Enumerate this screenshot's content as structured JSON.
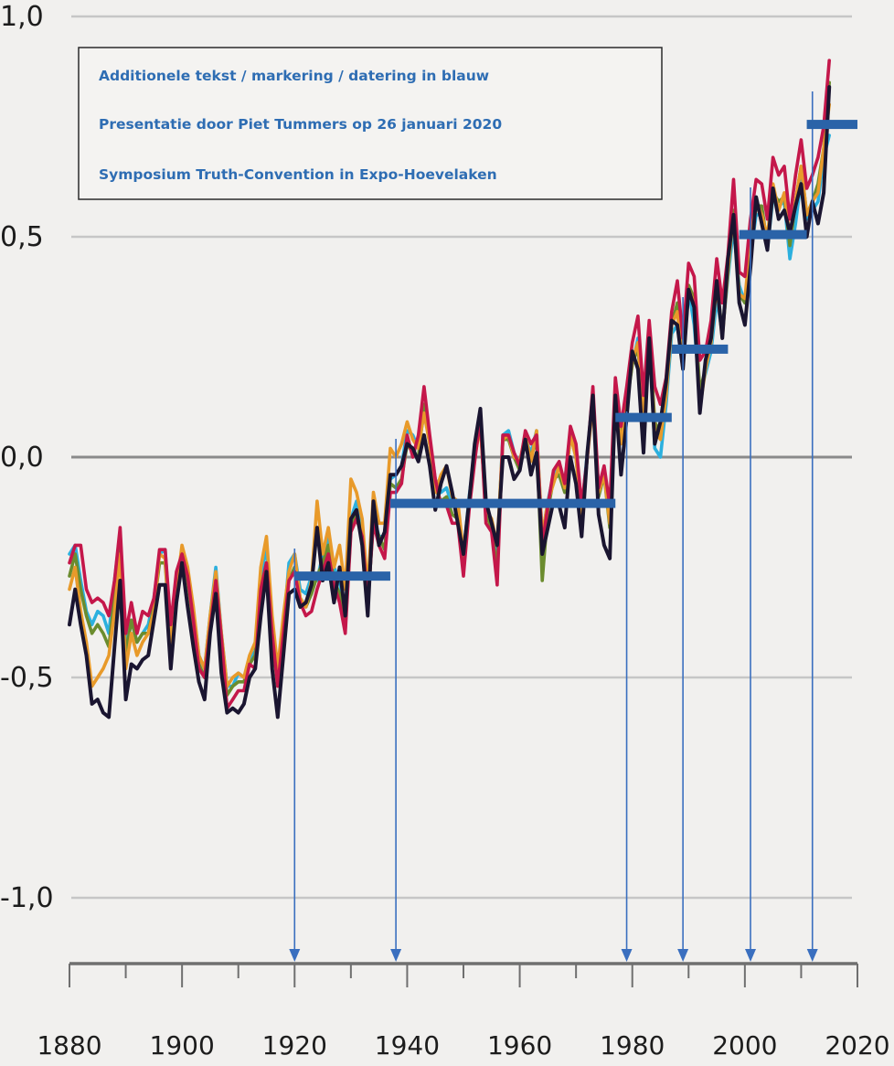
{
  "annotation_box": {
    "lines": [
      "Additionele tekst / markering / datering in blauw",
      "Presentatie door Piet Tummers op 26 januari 2020",
      "Symposium Truth-Convention in Expo-Hoevelaken"
    ]
  },
  "colors": {
    "background": "#f1f0ee",
    "gridline": "#c6c6c6",
    "zero_line": "#8a8a8a",
    "axis": "#6f6f6f",
    "annotation": "#2e6db3",
    "step_bar": "#2a63a8",
    "arrow": "#3a6fbf"
  },
  "chart_data": {
    "type": "line",
    "title": "",
    "xlabel": "",
    "ylabel": "",
    "xlim": [
      1880,
      2020
    ],
    "ylim": [
      -1.15,
      1.0
    ],
    "xticks": [
      1880,
      1900,
      1920,
      1940,
      1960,
      1980,
      2000,
      2020
    ],
    "xtick_labels": [
      "1880",
      "1900",
      "1920",
      "1940",
      "1960",
      "1980",
      "2000",
      "2020"
    ],
    "yticks": [
      1.0,
      0.5,
      0.0,
      -0.5,
      -1.0
    ],
    "ytick_labels": [
      "1,0",
      "0,5",
      "0,0",
      "-0,5",
      "-1,0"
    ],
    "grid": true,
    "legend": "none",
    "years": [
      1880,
      1881,
      1882,
      1883,
      1884,
      1885,
      1886,
      1887,
      1888,
      1889,
      1890,
      1891,
      1892,
      1893,
      1894,
      1895,
      1896,
      1897,
      1898,
      1899,
      1900,
      1901,
      1902,
      1903,
      1904,
      1905,
      1906,
      1907,
      1908,
      1909,
      1910,
      1911,
      1912,
      1913,
      1914,
      1915,
      1916,
      1917,
      1918,
      1919,
      1920,
      1921,
      1922,
      1923,
      1924,
      1925,
      1926,
      1927,
      1928,
      1929,
      1930,
      1931,
      1932,
      1933,
      1934,
      1935,
      1936,
      1937,
      1938,
      1939,
      1940,
      1941,
      1942,
      1943,
      1944,
      1945,
      1946,
      1947,
      1948,
      1949,
      1950,
      1951,
      1952,
      1953,
      1954,
      1955,
      1956,
      1957,
      1958,
      1959,
      1960,
      1961,
      1962,
      1963,
      1964,
      1965,
      1966,
      1967,
      1968,
      1969,
      1970,
      1971,
      1972,
      1973,
      1974,
      1975,
      1976,
      1977,
      1978,
      1979,
      1980,
      1981,
      1982,
      1983,
      1984,
      1985,
      1986,
      1987,
      1988,
      1989,
      1990,
      1991,
      1992,
      1993,
      1994,
      1995,
      1996,
      1997,
      1998,
      1999,
      2000,
      2001,
      2002,
      2003,
      2004,
      2005,
      2006,
      2007,
      2008,
      2009,
      2010,
      2011,
      2012,
      2013,
      2014,
      2015
    ],
    "series": [
      {
        "color": "#1a1530",
        "values": [
          -0.38,
          -0.3,
          -0.38,
          -0.45,
          -0.56,
          -0.55,
          -0.58,
          -0.59,
          -0.43,
          -0.28,
          -0.55,
          -0.47,
          -0.48,
          -0.46,
          -0.45,
          -0.37,
          -0.29,
          -0.29,
          -0.48,
          -0.33,
          -0.24,
          -0.34,
          -0.43,
          -0.51,
          -0.55,
          -0.4,
          -0.31,
          -0.49,
          -0.58,
          -0.57,
          -0.58,
          -0.56,
          -0.5,
          -0.48,
          -0.36,
          -0.26,
          -0.48,
          -0.59,
          -0.45,
          -0.31,
          -0.3,
          -0.34,
          -0.33,
          -0.29,
          -0.16,
          -0.28,
          -0.24,
          -0.33,
          -0.25,
          -0.36,
          -0.14,
          -0.12,
          -0.2,
          -0.36,
          -0.1,
          -0.2,
          -0.17,
          -0.04,
          -0.04,
          -0.02,
          0.03,
          0.02,
          -0.01,
          0.05,
          -0.02,
          -0.12,
          -0.06,
          -0.02,
          -0.08,
          -0.15,
          -0.22,
          -0.1,
          0.03,
          0.11,
          -0.1,
          -0.15,
          -0.2,
          0.0,
          0.0,
          -0.05,
          -0.03,
          0.04,
          -0.04,
          0.01,
          -0.22,
          -0.16,
          -0.1,
          -0.11,
          -0.16,
          0.0,
          -0.06,
          -0.18,
          0.01,
          0.14,
          -0.13,
          -0.2,
          -0.23,
          0.14,
          -0.04,
          0.09,
          0.24,
          0.2,
          0.01,
          0.27,
          0.03,
          0.08,
          0.17,
          0.31,
          0.3,
          0.2,
          0.38,
          0.34,
          0.1,
          0.22,
          0.27,
          0.4,
          0.27,
          0.45,
          0.55,
          0.35,
          0.3,
          0.43,
          0.59,
          0.53,
          0.47,
          0.61,
          0.54,
          0.56,
          0.51,
          0.57,
          0.62,
          0.5,
          0.58,
          0.53,
          0.6,
          0.84
        ]
      },
      {
        "color": "#c4174a",
        "values": [
          -0.24,
          -0.2,
          -0.2,
          -0.3,
          -0.33,
          -0.32,
          -0.33,
          -0.36,
          -0.28,
          -0.16,
          -0.4,
          -0.33,
          -0.4,
          -0.35,
          -0.36,
          -0.32,
          -0.21,
          -0.21,
          -0.38,
          -0.26,
          -0.22,
          -0.27,
          -0.37,
          -0.48,
          -0.5,
          -0.39,
          -0.28,
          -0.41,
          -0.57,
          -0.55,
          -0.53,
          -0.53,
          -0.47,
          -0.48,
          -0.3,
          -0.24,
          -0.4,
          -0.52,
          -0.4,
          -0.28,
          -0.26,
          -0.33,
          -0.36,
          -0.35,
          -0.3,
          -0.26,
          -0.22,
          -0.29,
          -0.33,
          -0.4,
          -0.17,
          -0.14,
          -0.18,
          -0.33,
          -0.15,
          -0.2,
          -0.23,
          -0.08,
          -0.08,
          -0.06,
          0.05,
          0.0,
          0.05,
          0.16,
          0.05,
          -0.05,
          -0.11,
          -0.11,
          -0.15,
          -0.15,
          -0.27,
          -0.12,
          -0.01,
          0.09,
          -0.15,
          -0.17,
          -0.29,
          0.05,
          0.05,
          0.01,
          -0.02,
          0.06,
          0.03,
          0.05,
          -0.2,
          -0.11,
          -0.03,
          -0.01,
          -0.06,
          0.07,
          0.03,
          -0.11,
          0.0,
          0.16,
          -0.07,
          -0.02,
          -0.11,
          0.18,
          0.07,
          0.16,
          0.26,
          0.32,
          0.14,
          0.31,
          0.16,
          0.12,
          0.18,
          0.33,
          0.4,
          0.27,
          0.44,
          0.41,
          0.22,
          0.24,
          0.31,
          0.45,
          0.35,
          0.46,
          0.63,
          0.42,
          0.41,
          0.54,
          0.63,
          0.62,
          0.54,
          0.68,
          0.64,
          0.66,
          0.54,
          0.64,
          0.72,
          0.61,
          0.64,
          0.68,
          0.75,
          0.9
        ]
      },
      {
        "color": "#2cb0de",
        "values": [
          -0.22,
          -0.2,
          -0.28,
          -0.35,
          -0.38,
          -0.35,
          -0.36,
          -0.4,
          -0.28,
          -0.17,
          -0.42,
          -0.37,
          -0.42,
          -0.4,
          -0.38,
          -0.32,
          -0.22,
          -0.21,
          -0.4,
          -0.27,
          -0.22,
          -0.26,
          -0.35,
          -0.45,
          -0.48,
          -0.36,
          -0.25,
          -0.4,
          -0.52,
          -0.52,
          -0.49,
          -0.5,
          -0.46,
          -0.44,
          -0.28,
          -0.2,
          -0.38,
          -0.5,
          -0.39,
          -0.24,
          -0.22,
          -0.3,
          -0.31,
          -0.27,
          -0.28,
          -0.22,
          -0.18,
          -0.25,
          -0.28,
          -0.36,
          -0.14,
          -0.1,
          -0.16,
          -0.3,
          -0.13,
          -0.18,
          -0.18,
          -0.05,
          -0.04,
          -0.02,
          0.06,
          0.05,
          0.02,
          0.1,
          0.04,
          -0.05,
          -0.08,
          -0.07,
          -0.11,
          -0.11,
          -0.22,
          -0.09,
          0.01,
          0.08,
          -0.12,
          -0.15,
          -0.22,
          0.05,
          0.06,
          0.01,
          -0.02,
          0.04,
          0.01,
          0.06,
          -0.18,
          -0.1,
          -0.04,
          -0.02,
          -0.06,
          0.06,
          0.01,
          -0.12,
          0.01,
          0.13,
          -0.07,
          -0.03,
          -0.15,
          0.13,
          0.03,
          0.13,
          0.21,
          0.27,
          0.04,
          0.28,
          0.02,
          0.0,
          0.12,
          0.28,
          0.3,
          0.2,
          0.38,
          0.3,
          0.14,
          0.19,
          0.24,
          0.36,
          0.28,
          0.41,
          0.52,
          0.39,
          0.35,
          0.46,
          0.55,
          0.55,
          0.47,
          0.59,
          0.57,
          0.58,
          0.45,
          0.53,
          0.63,
          0.54,
          0.56,
          0.58,
          0.68,
          0.73
        ]
      },
      {
        "color": "#6b8c2e",
        "values": [
          -0.27,
          -0.22,
          -0.3,
          -0.36,
          -0.4,
          -0.38,
          -0.4,
          -0.43,
          -0.32,
          -0.2,
          -0.45,
          -0.37,
          -0.42,
          -0.4,
          -0.4,
          -0.34,
          -0.24,
          -0.24,
          -0.42,
          -0.28,
          -0.24,
          -0.28,
          -0.38,
          -0.47,
          -0.5,
          -0.38,
          -0.28,
          -0.42,
          -0.54,
          -0.52,
          -0.51,
          -0.51,
          -0.47,
          -0.45,
          -0.3,
          -0.24,
          -0.41,
          -0.52,
          -0.4,
          -0.28,
          -0.25,
          -0.32,
          -0.34,
          -0.31,
          -0.27,
          -0.24,
          -0.2,
          -0.28,
          -0.31,
          -0.39,
          -0.16,
          -0.12,
          -0.19,
          -0.34,
          -0.14,
          -0.18,
          -0.21,
          -0.06,
          -0.07,
          -0.05,
          0.03,
          0.01,
          0.0,
          0.12,
          0.03,
          -0.07,
          -0.1,
          -0.09,
          -0.13,
          -0.14,
          -0.25,
          -0.1,
          0.0,
          0.08,
          -0.13,
          -0.16,
          -0.26,
          0.04,
          0.04,
          0.0,
          -0.03,
          0.04,
          0.0,
          0.04,
          -0.28,
          -0.12,
          -0.05,
          -0.04,
          -0.08,
          0.05,
          0.0,
          -0.14,
          0.0,
          0.14,
          -0.09,
          -0.04,
          -0.16,
          0.15,
          0.04,
          0.12,
          0.21,
          0.25,
          0.1,
          0.28,
          0.08,
          0.05,
          0.16,
          0.3,
          0.35,
          0.22,
          0.39,
          0.36,
          0.15,
          0.2,
          0.27,
          0.4,
          0.28,
          0.42,
          0.56,
          0.37,
          0.35,
          0.48,
          0.57,
          0.57,
          0.48,
          0.6,
          0.58,
          0.59,
          0.48,
          0.58,
          0.66,
          0.55,
          0.58,
          0.62,
          0.7,
          0.85
        ]
      },
      {
        "color": "#e89a2a",
        "values": [
          -0.3,
          -0.25,
          -0.35,
          -0.42,
          -0.52,
          -0.5,
          -0.48,
          -0.45,
          -0.35,
          -0.22,
          -0.48,
          -0.4,
          -0.45,
          -0.42,
          -0.4,
          -0.35,
          -0.22,
          -0.23,
          -0.42,
          -0.3,
          -0.2,
          -0.25,
          -0.34,
          -0.45,
          -0.48,
          -0.36,
          -0.26,
          -0.4,
          -0.52,
          -0.5,
          -0.49,
          -0.5,
          -0.45,
          -0.42,
          -0.25,
          -0.18,
          -0.36,
          -0.48,
          -0.36,
          -0.26,
          -0.22,
          -0.32,
          -0.34,
          -0.28,
          -0.1,
          -0.22,
          -0.16,
          -0.25,
          -0.2,
          -0.3,
          -0.05,
          -0.08,
          -0.14,
          -0.3,
          -0.08,
          -0.15,
          -0.15,
          0.02,
          0.0,
          0.03,
          0.08,
          0.04,
          0.02,
          0.1,
          0.03,
          -0.08,
          -0.04,
          -0.02,
          -0.09,
          -0.1,
          -0.22,
          -0.1,
          0.0,
          0.07,
          -0.12,
          -0.14,
          -0.2,
          0.04,
          0.05,
          0.0,
          -0.01,
          0.05,
          -0.01,
          0.06,
          -0.18,
          -0.1,
          -0.06,
          -0.02,
          -0.07,
          0.05,
          0.0,
          -0.13,
          0.0,
          0.12,
          -0.08,
          -0.04,
          -0.15,
          0.14,
          0.03,
          0.12,
          0.22,
          0.26,
          0.09,
          0.27,
          0.06,
          0.04,
          0.14,
          0.3,
          0.33,
          0.21,
          0.38,
          0.35,
          0.11,
          0.2,
          0.26,
          0.39,
          0.27,
          0.43,
          0.55,
          0.37,
          0.36,
          0.49,
          0.58,
          0.55,
          0.5,
          0.62,
          0.56,
          0.6,
          0.5,
          0.58,
          0.66,
          0.55,
          0.58,
          0.6,
          0.7,
          0.8
        ]
      }
    ],
    "step_levels": [
      {
        "x_start": 1920,
        "x_end": 1937,
        "y": -0.27
      },
      {
        "x_start": 1937,
        "x_end": 1977,
        "y": -0.105
      },
      {
        "x_start": 1977,
        "x_end": 1987,
        "y": 0.09
      },
      {
        "x_start": 1987,
        "x_end": 1997,
        "y": 0.245
      },
      {
        "x_start": 1999,
        "x_end": 2011,
        "y": 0.505
      },
      {
        "x_start": 2011,
        "x_end": 2020,
        "y": 0.755
      }
    ],
    "marker_years": [
      1920,
      1938,
      1979,
      1989,
      2001,
      2012
    ]
  }
}
